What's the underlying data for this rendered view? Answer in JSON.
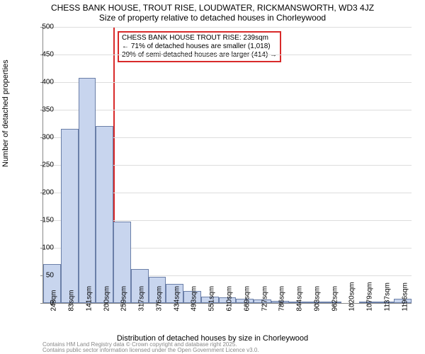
{
  "title_main": "CHESS BANK HOUSE, TROUT RISE, LOUDWATER, RICKMANSWORTH, WD3 4JZ",
  "title_sub": "Size of property relative to detached houses in Chorleywood",
  "y_axis_label": "Number of detached properties",
  "x_axis_label": "Distribution of detached houses by size in Chorleywood",
  "footer_line1": "Contains HM Land Registry data © Crown copyright and database right 2025.",
  "footer_line2": "Contains public sector information licensed under the Open Government Licence v3.0.",
  "chart": {
    "type": "histogram",
    "ylim": [
      0,
      500
    ],
    "ytick_step": 50,
    "background_color": "#ffffff",
    "grid_color": "#dddddd",
    "axis_color": "#888888",
    "bar_fill": "#c8d5ee",
    "bar_border": "#6b7fa8",
    "marker_color": "#d82a2a",
    "x_categories": [
      "24sqm",
      "83sqm",
      "141sqm",
      "200sqm",
      "259sqm",
      "317sqm",
      "376sqm",
      "434sqm",
      "493sqm",
      "551sqm",
      "610sqm",
      "669sqm",
      "727sqm",
      "786sqm",
      "844sqm",
      "903sqm",
      "962sqm",
      "1020sqm",
      "1079sqm",
      "1137sqm",
      "1196sqm"
    ],
    "values": [
      70,
      315,
      408,
      320,
      148,
      62,
      48,
      35,
      22,
      12,
      10,
      8,
      6,
      4,
      3,
      2,
      2,
      0,
      2,
      3,
      8
    ],
    "marker_x_index": 4.0,
    "annotation": {
      "line1": "CHESS BANK HOUSE TROUT RISE: 239sqm",
      "line2": "← 71% of detached houses are smaller (1,018)",
      "line3": "29% of semi-detached houses are larger (414) →"
    }
  }
}
